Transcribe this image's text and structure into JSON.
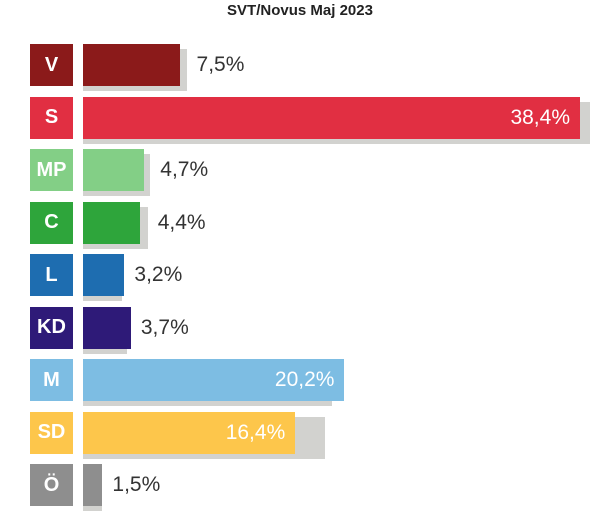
{
  "chart_data": {
    "type": "bar",
    "orientation": "horizontal",
    "title": "SVT/Novus Maj 2023",
    "categories": [
      "V",
      "S",
      "MP",
      "C",
      "L",
      "KD",
      "M",
      "SD",
      "Ö"
    ],
    "values": [
      7.5,
      38.4,
      4.7,
      4.4,
      3.2,
      3.7,
      20.2,
      16.4,
      1.5
    ],
    "value_labels": [
      "7,5%",
      "38,4%",
      "4,7%",
      "4,4%",
      "3,2%",
      "3,7%",
      "20,2%",
      "16,4%",
      "1,5%"
    ],
    "previous_values": [
      8.0,
      39.2,
      5.2,
      5.0,
      3.0,
      3.4,
      19.2,
      18.7,
      1.5
    ],
    "colors": [
      "#8b1a1a",
      "#e12f42",
      "#83cf86",
      "#2ea53b",
      "#1e6db0",
      "#2e1a78",
      "#7dbde3",
      "#fdc64b",
      "#8e8e8e"
    ],
    "shadow_color": "#d2d2cf",
    "xlim": [
      0,
      40
    ],
    "grid": false,
    "legend": "none"
  }
}
